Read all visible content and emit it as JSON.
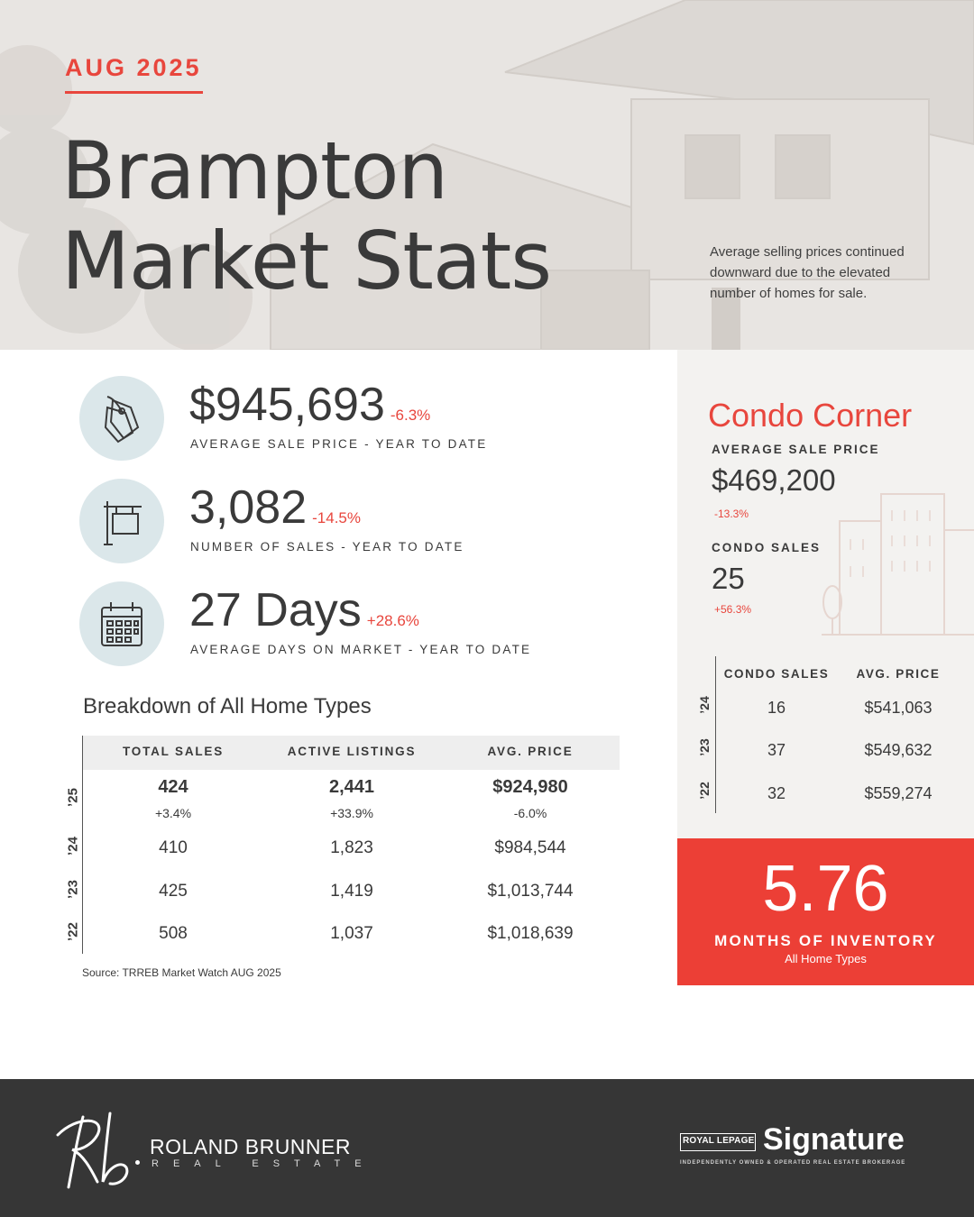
{
  "header": {
    "date": "AUG 2025",
    "title_line1": "Brampton",
    "title_line2": "Market Stats",
    "note": "Average selling prices continued downward due to the elevated number of homes for sale."
  },
  "kpis": [
    {
      "icon": "price-tag-icon",
      "value": "$945,693",
      "change": "-6.3%",
      "label": "AVERAGE SALE PRICE - YEAR TO DATE"
    },
    {
      "icon": "for-sale-sign-icon",
      "value": "3,082",
      "change": "-14.5%",
      "label": "NUMBER OF SALES - YEAR TO DATE"
    },
    {
      "icon": "calendar-icon",
      "value": "27 Days",
      "change": "+28.6%",
      "label": "AVERAGE DAYS ON MARKET - YEAR TO DATE"
    }
  ],
  "breakdown": {
    "title": "Breakdown of All Home Types",
    "headers": [
      "TOTAL SALES",
      "ACTIVE LISTINGS",
      "AVG. PRICE"
    ],
    "rows": [
      {
        "year": "’25",
        "sales": "424",
        "listings": "2,441",
        "price": "$924,980",
        "sales_change": "+3.4%",
        "listings_change": "+33.9%",
        "price_change": "-6.0%"
      },
      {
        "year": "’24",
        "sales": "410",
        "listings": "1,823",
        "price": "$984,544"
      },
      {
        "year": "’23",
        "sales": "425",
        "listings": "1,419",
        "price": "$1,013,744"
      },
      {
        "year": "’22",
        "sales": "508",
        "listings": "1,037",
        "price": "$1,018,639"
      }
    ],
    "source": "Source: TRREB Market Watch AUG 2025"
  },
  "condo": {
    "title": "Condo Corner",
    "avg_label": "AVERAGE SALE PRICE",
    "avg_value": "$469,200",
    "avg_change": "-13.3%",
    "sales_label": "CONDO SALES",
    "sales_value": "25",
    "sales_change": "+56.3%",
    "table_headers": [
      "CONDO SALES",
      "AVG. PRICE"
    ],
    "rows": [
      {
        "year": "’24",
        "sales": "16",
        "price": "$541,063"
      },
      {
        "year": "’23",
        "sales": "37",
        "price": "$549,632"
      },
      {
        "year": "’22",
        "sales": "32",
        "price": "$559,274"
      }
    ]
  },
  "inventory": {
    "value": "5.76",
    "label": "MONTHS OF INVENTORY",
    "sub": "All Home Types"
  },
  "footer": {
    "agent_name": "ROLAND BRUNNER",
    "agent_sub": "REAL ESTATE",
    "brokerage_box": "ROYAL LEPAGE",
    "brokerage_name": "Signature",
    "brokerage_tag": "INDEPENDENTLY OWNED & OPERATED REAL ESTATE BROKERAGE"
  },
  "colors": {
    "accent": "#e8463d",
    "icon_circle": "#dbe7ea",
    "footer_bg": "#363636"
  }
}
